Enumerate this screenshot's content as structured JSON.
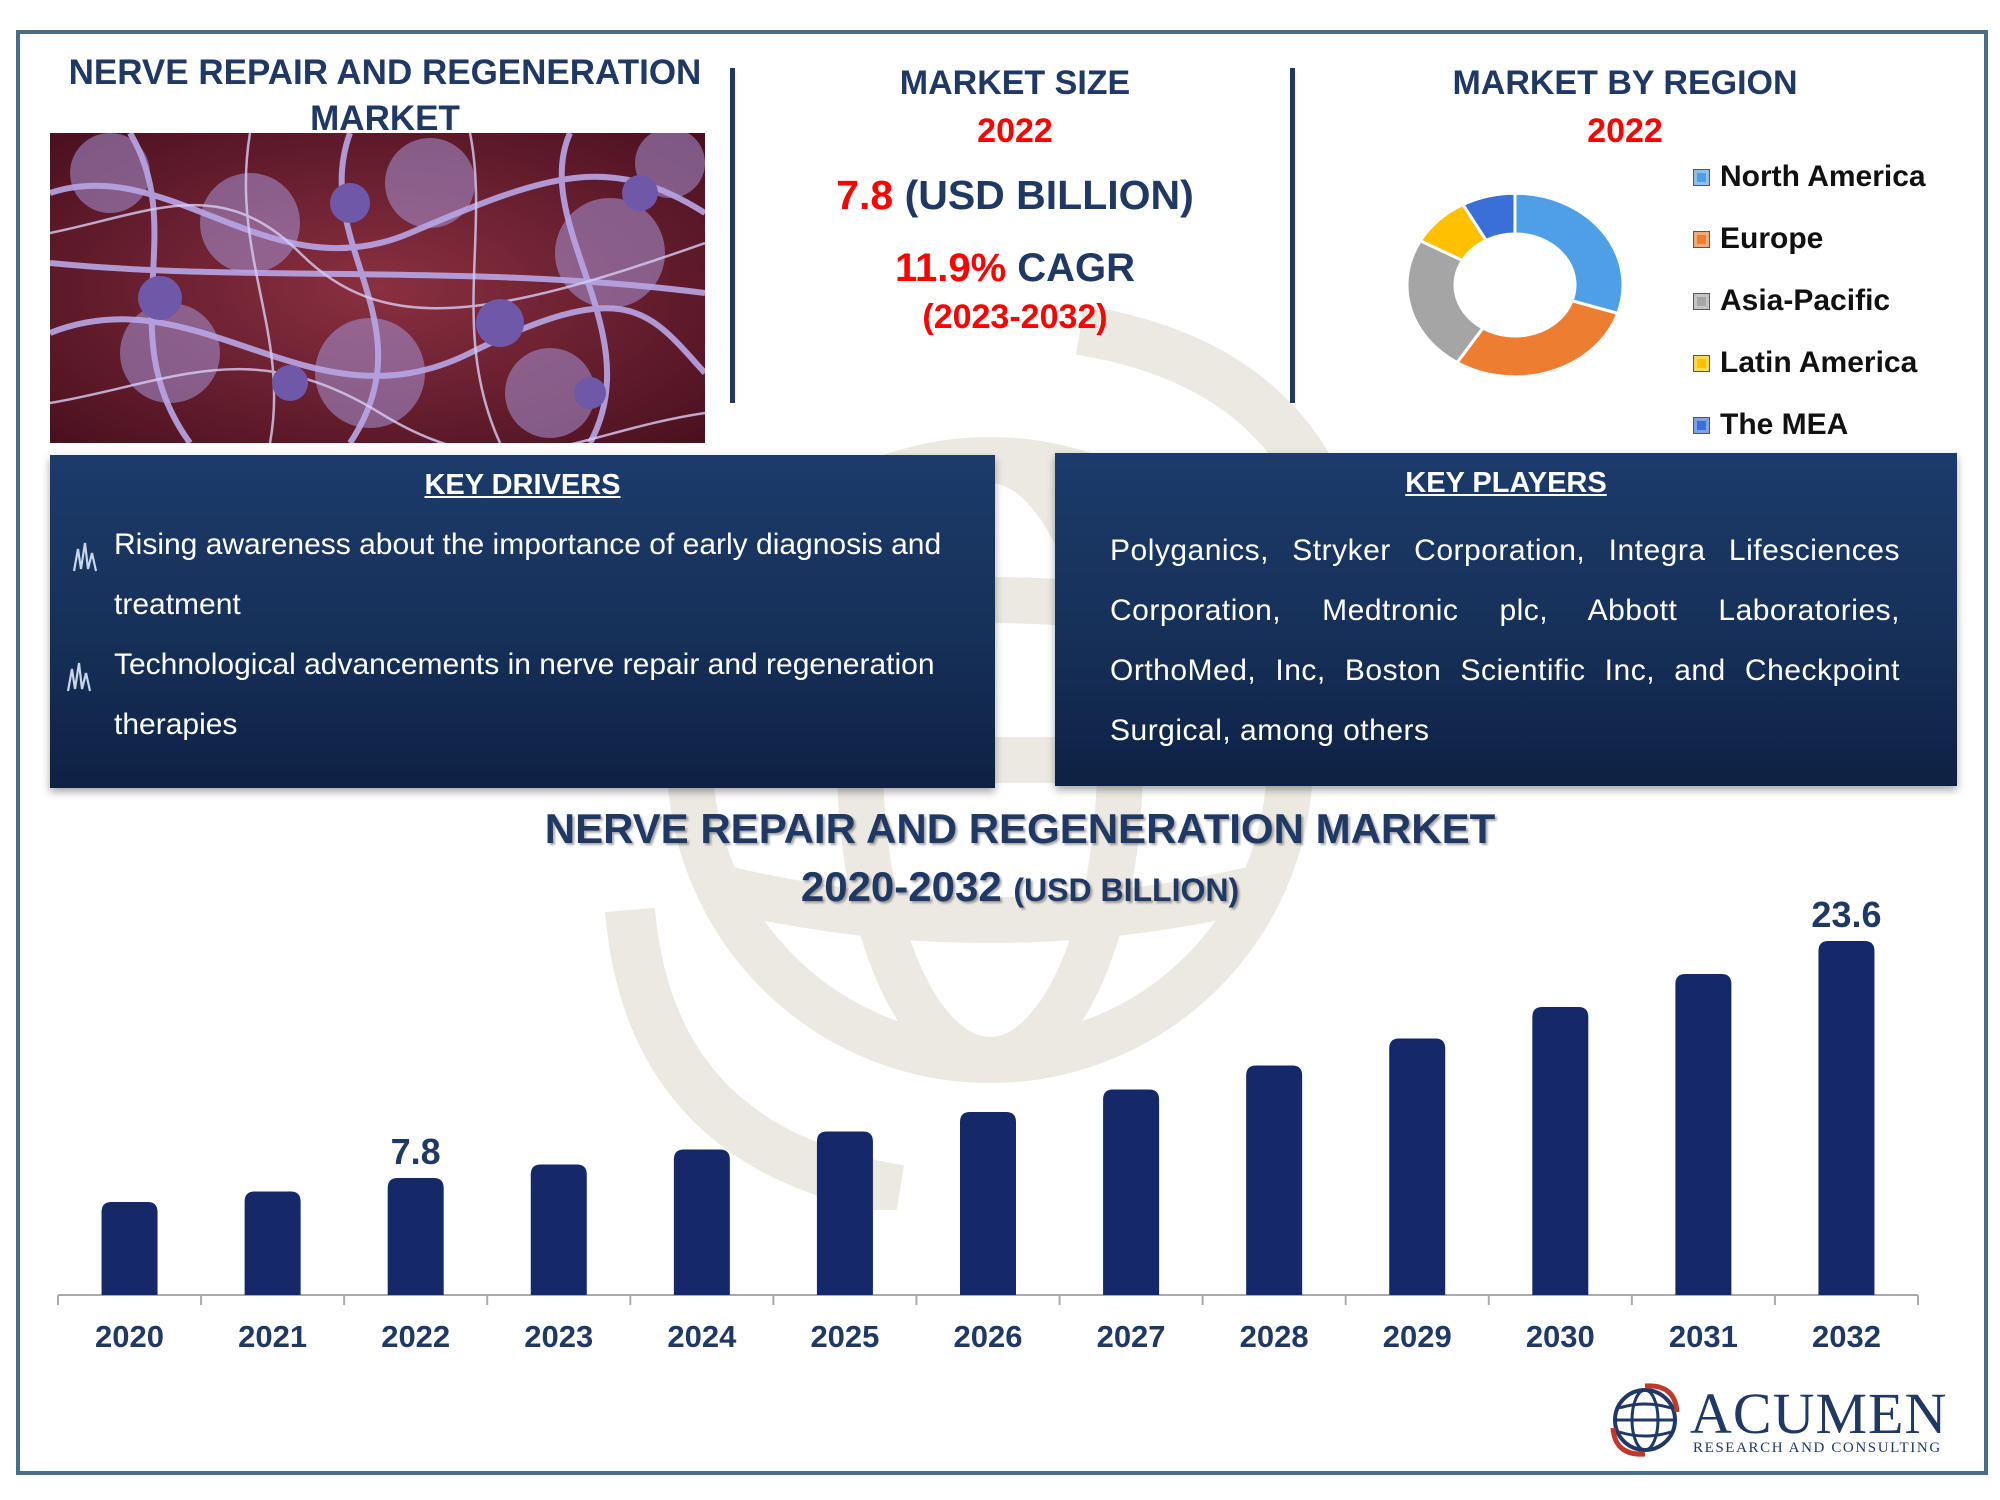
{
  "header": {
    "title_line1": "NERVE REPAIR AND REGENERATION",
    "title_line2": "MARKET"
  },
  "market_size": {
    "label": "MARKET SIZE",
    "year": "2022",
    "value": "7.8",
    "unit": "(USD BILLION)",
    "cagr_value": "11.9%",
    "cagr_label": "CAGR",
    "cagr_period": "(2023-2032)"
  },
  "region": {
    "label": "MARKET BY REGION",
    "year": "2022",
    "items": [
      {
        "name": "North America",
        "color": "#4f9fe6",
        "share": 30
      },
      {
        "name": "Europe",
        "color": "#ed7d31",
        "share": 29
      },
      {
        "name": "Asia-Pacific",
        "color": "#a5a5a5",
        "share": 24
      },
      {
        "name": "Latin America",
        "color": "#ffc000",
        "share": 9
      },
      {
        "name": "The MEA",
        "color": "#3a6fd8",
        "share": 8
      }
    ]
  },
  "drivers": {
    "title": "KEY DRIVERS",
    "items": [
      {
        "line1": "Rising awareness about the importance of early diagnosis and",
        "line2": "treatment"
      },
      {
        "line1": "Technological advancements in nerve repair and regeneration",
        "line2": "therapies"
      }
    ]
  },
  "players": {
    "title": "KEY PLAYERS",
    "text": "Polyganics, Stryker Corporation, Integra Lifesciences Corporation, Medtronic plc, Abbott Laboratories, OrthoMed, Inc, Boston Scientific Inc, and Checkpoint Surgical, among others"
  },
  "chart_title": {
    "line1": "NERVE REPAIR AND REGENERATION MARKET",
    "line2": "2020-2032",
    "unit": "(USD BILLION)"
  },
  "chart_data": {
    "type": "bar",
    "categories": [
      "2020",
      "2021",
      "2022",
      "2023",
      "2024",
      "2025",
      "2026",
      "2027",
      "2028",
      "2029",
      "2030",
      "2031",
      "2032"
    ],
    "values": [
      6.2,
      6.9,
      7.8,
      8.7,
      9.7,
      10.9,
      12.2,
      13.7,
      15.3,
      17.1,
      19.2,
      21.4,
      23.6
    ],
    "data_labels": {
      "2022": "7.8",
      "2032": "23.6"
    },
    "ylim": [
      0,
      25
    ],
    "grid": false,
    "bar_color": "#14286a"
  },
  "logo": {
    "name": "ACUMEN",
    "subtitle": "RESEARCH AND CONSULTING"
  }
}
